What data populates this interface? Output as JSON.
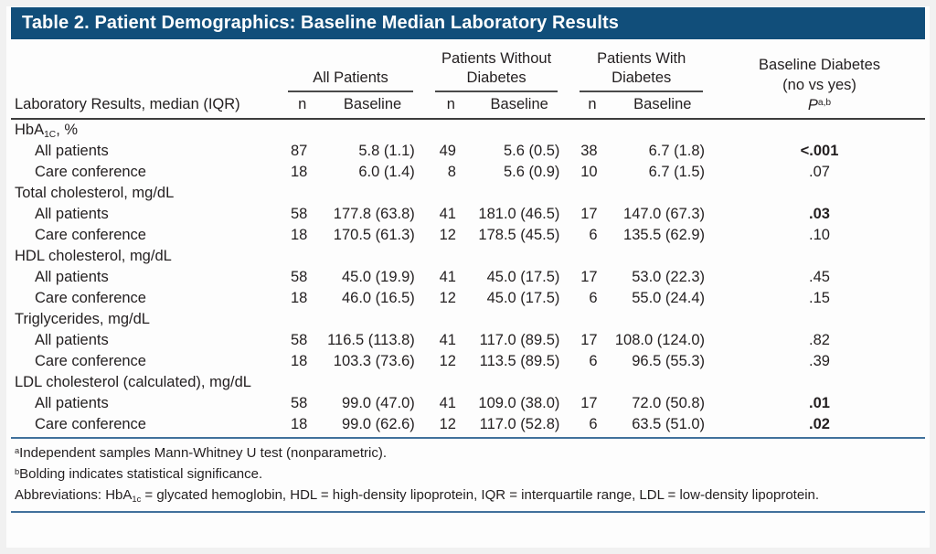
{
  "title_bar": {
    "title": "Table 2. Patient Demographics: Baseline Median Laboratory Results"
  },
  "colors": {
    "title_bg": "#114e7a",
    "rule_blue": "#41719c",
    "rule_dark": "#3d3d3d",
    "text": "#231f20"
  },
  "header": {
    "label_column": "Laboratory Results, median (IQR)",
    "groups": [
      {
        "label": "All Patients"
      },
      {
        "label": "Patients Without Diabetes"
      },
      {
        "label": "Patients With Diabetes"
      }
    ],
    "sub": {
      "n": "n",
      "baseline": "Baseline"
    },
    "p": {
      "line1": "Baseline Diabetes",
      "line2": "(no vs yes)",
      "symbol": "P",
      "sup": "a,b"
    }
  },
  "sections": [
    {
      "label_parts": [
        {
          "t": "HbA"
        },
        {
          "sub": "1C"
        },
        {
          "t": ", %"
        }
      ],
      "rows": [
        {
          "label": "All patients",
          "n1": "87",
          "b1": "5.8 (1.1)",
          "n2": "49",
          "b2": "5.6 (0.5)",
          "n3": "38",
          "b3": "6.7 (1.8)",
          "p": "<.001",
          "p_bold": true
        },
        {
          "label": "Care conference",
          "n1": "18",
          "b1": "6.0 (1.4)",
          "n2": "8",
          "b2": "5.6 (0.9)",
          "n3": "10",
          "b3": "6.7 (1.5)",
          "p": ".07",
          "p_bold": false
        }
      ]
    },
    {
      "label_parts": [
        {
          "t": "Total cholesterol, mg/dL"
        }
      ],
      "rows": [
        {
          "label": "All patients",
          "n1": "58",
          "b1": "177.8 (63.8)",
          "n2": "41",
          "b2": "181.0 (46.5)",
          "n3": "17",
          "b3": "147.0 (67.3)",
          "p": ".03",
          "p_bold": true
        },
        {
          "label": "Care conference",
          "n1": "18",
          "b1": "170.5 (61.3)",
          "n2": "12",
          "b2": "178.5 (45.5)",
          "n3": "6",
          "b3": "135.5 (62.9)",
          "p": ".10",
          "p_bold": false
        }
      ]
    },
    {
      "label_parts": [
        {
          "t": "HDL cholesterol, mg/dL"
        }
      ],
      "rows": [
        {
          "label": "All patients",
          "n1": "58",
          "b1": "45.0 (19.9)",
          "n2": "41",
          "b2": "45.0 (17.5)",
          "n3": "17",
          "b3": "53.0 (22.3)",
          "p": ".45",
          "p_bold": false
        },
        {
          "label": "Care conference",
          "n1": "18",
          "b1": "46.0 (16.5)",
          "n2": "12",
          "b2": "45.0 (17.5)",
          "n3": "6",
          "b3": "55.0 (24.4)",
          "p": ".15",
          "p_bold": false
        }
      ]
    },
    {
      "label_parts": [
        {
          "t": "Triglycerides, mg/dL"
        }
      ],
      "rows": [
        {
          "label": "All patients",
          "n1": "58",
          "b1": "116.5 (113.8)",
          "n2": "41",
          "b2": "117.0 (89.5)",
          "n3": "17",
          "b3": "108.0 (124.0)",
          "p": ".82",
          "p_bold": false
        },
        {
          "label": "Care conference",
          "n1": "18",
          "b1": "103.3 (73.6)",
          "n2": "12",
          "b2": "113.5 (89.5)",
          "n3": "6",
          "b3": "96.5 (55.3)",
          "p": ".39",
          "p_bold": false
        }
      ]
    },
    {
      "label_parts": [
        {
          "t": "LDL cholesterol (calculated), mg/dL"
        }
      ],
      "rows": [
        {
          "label": "All patients",
          "n1": "58",
          "b1": "99.0 (47.0)",
          "n2": "41",
          "b2": "109.0 (38.0)",
          "n3": "17",
          "b3": "72.0 (50.8)",
          "p": ".01",
          "p_bold": true
        },
        {
          "label": "Care conference",
          "n1": "18",
          "b1": "99.0 (62.6)",
          "n2": "12",
          "b2": "117.0 (52.8)",
          "n3": "6",
          "b3": "63.5 (51.0)",
          "p": ".02",
          "p_bold": true
        }
      ]
    }
  ],
  "footnotes": [
    {
      "sup": "a",
      "parts": [
        {
          "t": "Independent samples Mann-Whitney U test (nonparametric)."
        }
      ]
    },
    {
      "sup": "b",
      "parts": [
        {
          "t": "Bolding indicates statistical significance."
        }
      ]
    },
    {
      "sup": "",
      "hanging": true,
      "parts": [
        {
          "t": "Abbreviations: HbA"
        },
        {
          "sub": "1c"
        },
        {
          "t": " = glycated hemoglobin, HDL = high-density lipoprotein, IQR = interquartile range, LDL = low-density lipoprotein."
        }
      ]
    }
  ]
}
